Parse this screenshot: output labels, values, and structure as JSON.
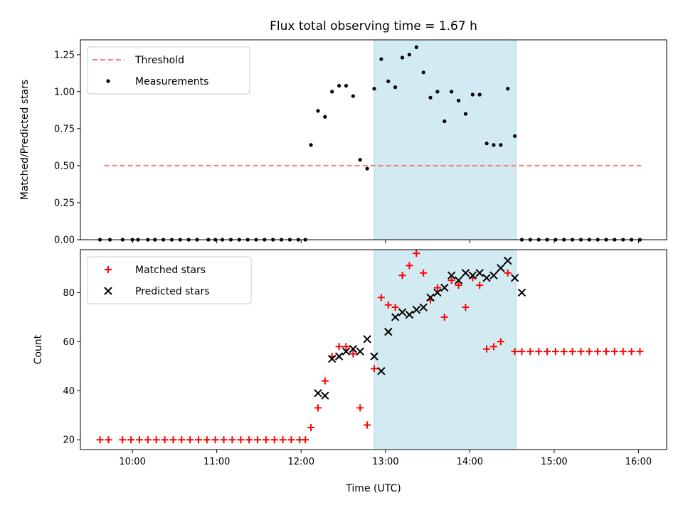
{
  "chart_data": [
    {
      "type": "scatter",
      "title": "Flux total observing time = 1.67 h",
      "ylabel": "Matched/Predicted stars",
      "xlabel": "",
      "xlim": [
        "09:23",
        "16:20"
      ],
      "ylim": [
        0,
        1.35
      ],
      "yticks": [
        0.0,
        0.25,
        0.5,
        0.75,
        1.0,
        1.25
      ],
      "ytick_labels": [
        "0.00",
        "0.25",
        "0.50",
        "0.75",
        "1.00",
        "1.25"
      ],
      "legend_position": "top-left",
      "shaded_span": {
        "start": "12:52",
        "end": "14:33",
        "color": "#add8e6"
      },
      "threshold": {
        "name": "Threshold",
        "value": 0.5,
        "x_start": "09:40",
        "x_end": "16:02",
        "color": "#f08080",
        "style": "dashed"
      },
      "series": [
        {
          "name": "Measurements",
          "color": "#000000",
          "marker": "dot",
          "points": [
            [
              "09:37",
              0
            ],
            [
              "09:44",
              0
            ],
            [
              "09:53",
              0
            ],
            [
              "10:00",
              0
            ],
            [
              "10:04",
              0
            ],
            [
              "10:11",
              0
            ],
            [
              "10:16",
              0
            ],
            [
              "10:22",
              0
            ],
            [
              "10:28",
              0
            ],
            [
              "10:34",
              0
            ],
            [
              "10:40",
              0
            ],
            [
              "10:46",
              0
            ],
            [
              "10:54",
              0
            ],
            [
              "10:59",
              0
            ],
            [
              "11:04",
              0
            ],
            [
              "11:10",
              0
            ],
            [
              "11:16",
              0
            ],
            [
              "11:22",
              0
            ],
            [
              "11:28",
              0
            ],
            [
              "11:34",
              0
            ],
            [
              "11:40",
              0
            ],
            [
              "11:46",
              0
            ],
            [
              "11:52",
              0
            ],
            [
              "11:58",
              0
            ],
            [
              "12:03",
              0
            ],
            [
              "12:07",
              0.64
            ],
            [
              "12:12",
              0.87
            ],
            [
              "12:17",
              0.83
            ],
            [
              "12:22",
              1.0
            ],
            [
              "12:27",
              1.04
            ],
            [
              "12:32",
              1.04
            ],
            [
              "12:37",
              0.97
            ],
            [
              "12:42",
              0.54
            ],
            [
              "12:47",
              0.48
            ],
            [
              "12:52",
              1.02
            ],
            [
              "12:57",
              1.22
            ],
            [
              "13:02",
              1.07
            ],
            [
              "13:07",
              1.03
            ],
            [
              "13:12",
              1.23
            ],
            [
              "13:17",
              1.25
            ],
            [
              "13:22",
              1.3
            ],
            [
              "13:27",
              1.13
            ],
            [
              "13:32",
              0.96
            ],
            [
              "13:37",
              1.0
            ],
            [
              "13:42",
              0.8
            ],
            [
              "13:47",
              1.0
            ],
            [
              "13:52",
              0.94
            ],
            [
              "13:57",
              0.85
            ],
            [
              "14:02",
              0.98
            ],
            [
              "14:07",
              0.98
            ],
            [
              "14:12",
              0.65
            ],
            [
              "14:17",
              0.64
            ],
            [
              "14:22",
              0.64
            ],
            [
              "14:27",
              1.02
            ],
            [
              "14:32",
              0.7
            ],
            [
              "14:37",
              0
            ],
            [
              "14:43",
              0
            ],
            [
              "14:49",
              0
            ],
            [
              "14:55",
              0
            ],
            [
              "15:01",
              0
            ],
            [
              "15:07",
              0
            ],
            [
              "15:13",
              0
            ],
            [
              "15:19",
              0
            ],
            [
              "15:25",
              0
            ],
            [
              "15:31",
              0
            ],
            [
              "15:37",
              0
            ],
            [
              "15:43",
              0
            ],
            [
              "15:49",
              0
            ],
            [
              "15:55",
              0
            ],
            [
              "16:01",
              0
            ]
          ]
        }
      ]
    },
    {
      "type": "scatter",
      "title": "",
      "ylabel": "Count",
      "xlabel": "Time (UTC)",
      "xlim": [
        "09:23",
        "16:20"
      ],
      "ylim": [
        16,
        97.5
      ],
      "xticks": [
        "10:00",
        "11:00",
        "12:00",
        "13:00",
        "14:00",
        "15:00",
        "16:00"
      ],
      "yticks": [
        20,
        40,
        60,
        80
      ],
      "ytick_labels": [
        "20",
        "40",
        "60",
        "80"
      ],
      "legend_position": "top-left",
      "shaded_span": {
        "start": "12:52",
        "end": "14:33",
        "color": "#add8e6"
      },
      "series": [
        {
          "name": "Matched stars",
          "color": "#ff0000",
          "marker": "plus",
          "points": [
            [
              "09:37",
              20
            ],
            [
              "09:43",
              20
            ],
            [
              "09:53",
              20
            ],
            [
              "09:59",
              20
            ],
            [
              "10:05",
              20
            ],
            [
              "10:11",
              20
            ],
            [
              "10:17",
              20
            ],
            [
              "10:23",
              20
            ],
            [
              "10:29",
              20
            ],
            [
              "10:35",
              20
            ],
            [
              "10:41",
              20
            ],
            [
              "10:47",
              20
            ],
            [
              "10:53",
              20
            ],
            [
              "10:59",
              20
            ],
            [
              "11:05",
              20
            ],
            [
              "11:11",
              20
            ],
            [
              "11:17",
              20
            ],
            [
              "11:23",
              20
            ],
            [
              "11:29",
              20
            ],
            [
              "11:35",
              20
            ],
            [
              "11:41",
              20
            ],
            [
              "11:47",
              20
            ],
            [
              "11:53",
              20
            ],
            [
              "11:59",
              20
            ],
            [
              "12:03",
              20
            ],
            [
              "12:07",
              25
            ],
            [
              "12:12",
              33
            ],
            [
              "12:17",
              44
            ],
            [
              "12:22",
              54
            ],
            [
              "12:27",
              58
            ],
            [
              "12:32",
              58
            ],
            [
              "12:37",
              55
            ],
            [
              "12:42",
              33
            ],
            [
              "12:47",
              26
            ],
            [
              "12:52",
              49
            ],
            [
              "12:57",
              78
            ],
            [
              "13:02",
              75
            ],
            [
              "13:07",
              74
            ],
            [
              "13:12",
              87
            ],
            [
              "13:17",
              91
            ],
            [
              "13:22",
              96
            ],
            [
              "13:27",
              88
            ],
            [
              "13:32",
              77
            ],
            [
              "13:37",
              82
            ],
            [
              "13:42",
              70
            ],
            [
              "13:47",
              85
            ],
            [
              "13:52",
              83
            ],
            [
              "13:57",
              74
            ],
            [
              "14:02",
              86
            ],
            [
              "14:07",
              83
            ],
            [
              "14:12",
              57
            ],
            [
              "14:17",
              58
            ],
            [
              "14:22",
              60
            ],
            [
              "14:27",
              88
            ],
            [
              "14:32",
              56
            ],
            [
              "14:37",
              56
            ],
            [
              "14:43",
              56
            ],
            [
              "14:49",
              56
            ],
            [
              "14:55",
              56
            ],
            [
              "15:01",
              56
            ],
            [
              "15:07",
              56
            ],
            [
              "15:13",
              56
            ],
            [
              "15:19",
              56
            ],
            [
              "15:25",
              56
            ],
            [
              "15:31",
              56
            ],
            [
              "15:37",
              56
            ],
            [
              "15:43",
              56
            ],
            [
              "15:49",
              56
            ],
            [
              "15:55",
              56
            ],
            [
              "16:01",
              56
            ]
          ]
        },
        {
          "name": "Predicted stars",
          "color": "#000000",
          "marker": "x",
          "points": [
            [
              "12:12",
              39
            ],
            [
              "12:17",
              38
            ],
            [
              "12:22",
              53
            ],
            [
              "12:27",
              54
            ],
            [
              "12:32",
              56
            ],
            [
              "12:37",
              57
            ],
            [
              "12:42",
              56
            ],
            [
              "12:47",
              61
            ],
            [
              "12:52",
              54
            ],
            [
              "12:57",
              48
            ],
            [
              "13:02",
              64
            ],
            [
              "13:07",
              70
            ],
            [
              "13:12",
              72
            ],
            [
              "13:17",
              71
            ],
            [
              "13:22",
              73
            ],
            [
              "13:27",
              74
            ],
            [
              "13:32",
              78
            ],
            [
              "13:37",
              80
            ],
            [
              "13:42",
              82
            ],
            [
              "13:47",
              87
            ],
            [
              "13:52",
              85
            ],
            [
              "13:57",
              88
            ],
            [
              "14:02",
              87
            ],
            [
              "14:07",
              88
            ],
            [
              "14:12",
              86
            ],
            [
              "14:17",
              87
            ],
            [
              "14:22",
              90
            ],
            [
              "14:27",
              93
            ],
            [
              "14:32",
              86
            ],
            [
              "14:37",
              80
            ]
          ]
        }
      ]
    }
  ]
}
